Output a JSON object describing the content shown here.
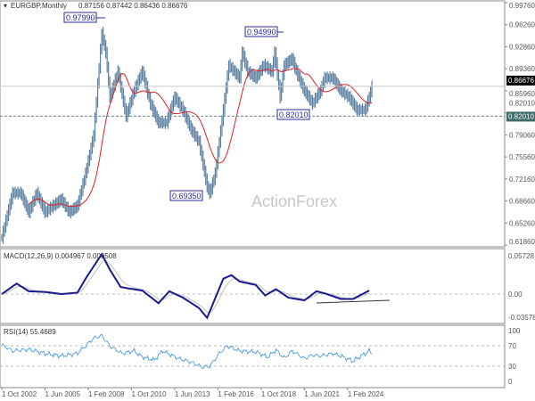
{
  "header": {
    "symbol": "EURGBP,Monthly",
    "ohlc": "0.87156 0.87442 0.86436 0.86676"
  },
  "watermark": "ActionForex",
  "colors": {
    "price": "#5a7fa0",
    "ma": "#e02020",
    "macd": "#1a1a8c",
    "signal": "#c0c0c0",
    "rsi": "#3a8ee6",
    "grid": "#999999"
  },
  "chart_data": [
    {
      "type": "bar",
      "title": "EURGBP,Monthly",
      "ylim": [
        0.6186,
        0.9976
      ],
      "yticks": [
        "0.99760",
        "0.96260",
        "0.92860",
        "0.89360",
        "0.85960",
        "0.82010",
        "0.79060",
        "0.75560",
        "0.72160",
        "0.68660",
        "0.65260",
        "0.61860"
      ],
      "current_price": "0.86676",
      "support_level": "0.82010",
      "annotations": [
        "0.97990",
        "0.94990",
        "0.82010",
        "0.69350"
      ],
      "series": [
        {
          "dates": [
            "2002-10",
            "2003-06",
            "2003-12",
            "2004-06",
            "2004-12",
            "2005-06",
            "2005-12",
            "2006-06",
            "2006-12",
            "2007-06",
            "2007-12",
            "2008-06",
            "2008-12",
            "2009-03",
            "2009-06",
            "2009-12",
            "2010-06",
            "2010-12",
            "2011-06",
            "2011-12",
            "2012-06",
            "2012-12",
            "2013-06",
            "2013-12",
            "2014-06",
            "2014-12",
            "2015-06",
            "2015-08",
            "2015-12",
            "2016-06",
            "2016-10",
            "2017-06",
            "2017-08",
            "2017-12",
            "2018-06",
            "2018-12",
            "2019-06",
            "2019-08",
            "2019-12",
            "2020-03",
            "2020-09",
            "2020-12",
            "2021-06",
            "2021-12",
            "2022-06",
            "2022-09",
            "2023-03",
            "2023-09",
            "2024-03",
            "2024-09",
            "2025-03",
            "2025-06",
            "2025-08"
          ],
          "close": [
            0.63,
            0.7,
            0.7,
            0.67,
            0.7,
            0.67,
            0.68,
            0.69,
            0.67,
            0.68,
            0.73,
            0.79,
            0.95,
            0.92,
            0.85,
            0.89,
            0.82,
            0.86,
            0.89,
            0.84,
            0.81,
            0.81,
            0.85,
            0.83,
            0.8,
            0.78,
            0.71,
            0.7,
            0.73,
            0.83,
            0.9,
            0.88,
            0.92,
            0.89,
            0.88,
            0.9,
            0.89,
            0.92,
            0.85,
            0.9,
            0.91,
            0.89,
            0.86,
            0.84,
            0.86,
            0.88,
            0.88,
            0.86,
            0.85,
            0.83,
            0.83,
            0.85,
            0.8668
          ]
        }
      ]
    },
    {
      "type": "line",
      "title": "MACD(12,26,9) 0.004967 0.000508",
      "yticks": [
        "0.05728",
        "0.00",
        "-0.035783"
      ],
      "series": [
        {
          "dates": [
            "2002-10",
            "2003-09",
            "2004-06",
            "2005-06",
            "2006-06",
            "2007-06",
            "2008-01",
            "2008-12",
            "2009-06",
            "2010-02",
            "2010-08",
            "2011-06",
            "2012-06",
            "2013-02",
            "2013-12",
            "2014-12",
            "2015-06",
            "2016-06",
            "2016-12",
            "2017-06",
            "2018-06",
            "2019-01",
            "2019-09",
            "2020-06",
            "2021-06",
            "2022-03",
            "2022-09",
            "2023-09",
            "2024-06",
            "2025-06"
          ],
          "values": [
            0,
            0.015,
            0.004,
            0.003,
            0,
            0.002,
            0.025,
            0.057,
            0.035,
            0.01,
            0.008,
            0.005,
            -0.013,
            0.004,
            -0.005,
            -0.02,
            -0.034,
            0.022,
            0.027,
            0.018,
            0.013,
            -0.002,
            0.007,
            -0.005,
            -0.009,
            0.004,
            0.001,
            -0.007,
            -0.007,
            0.005
          ]
        }
      ]
    },
    {
      "type": "line",
      "title": "RSI(14) 55.4689",
      "yticks": [
        "100",
        "70",
        "30",
        "0"
      ],
      "ylim": [
        0,
        100
      ],
      "series": [
        {
          "dates": [
            "2002-10",
            "2003-06",
            "2004-06",
            "2005-06",
            "2006-06",
            "2007-06",
            "2008-06",
            "2008-12",
            "2009-06",
            "2010-03",
            "2010-12",
            "2011-06",
            "2012-03",
            "2012-09",
            "2013-09",
            "2014-06",
            "2015-03",
            "2015-08",
            "2016-03",
            "2016-09",
            "2017-06",
            "2018-06",
            "2019-03",
            "2019-09",
            "2020-03",
            "2020-09",
            "2021-06",
            "2021-12",
            "2022-06",
            "2023-03",
            "2023-09",
            "2024-06",
            "2025-06",
            "2025-08"
          ],
          "values": [
            72,
            60,
            63,
            55,
            50,
            55,
            85,
            90,
            70,
            55,
            60,
            48,
            42,
            60,
            45,
            38,
            28,
            30,
            55,
            70,
            60,
            58,
            48,
            62,
            46,
            60,
            45,
            52,
            50,
            55,
            50,
            40,
            60,
            55
          ]
        }
      ]
    }
  ],
  "xticks": [
    "1 Oct 2002",
    "1 Jun 2005",
    "1 Feb 2008",
    "1 Oct 2010",
    "1 Jun 2013",
    "1 Feb 2016",
    "1 Oct 2018",
    "1 Jun 2021",
    "1 Feb 2024"
  ]
}
